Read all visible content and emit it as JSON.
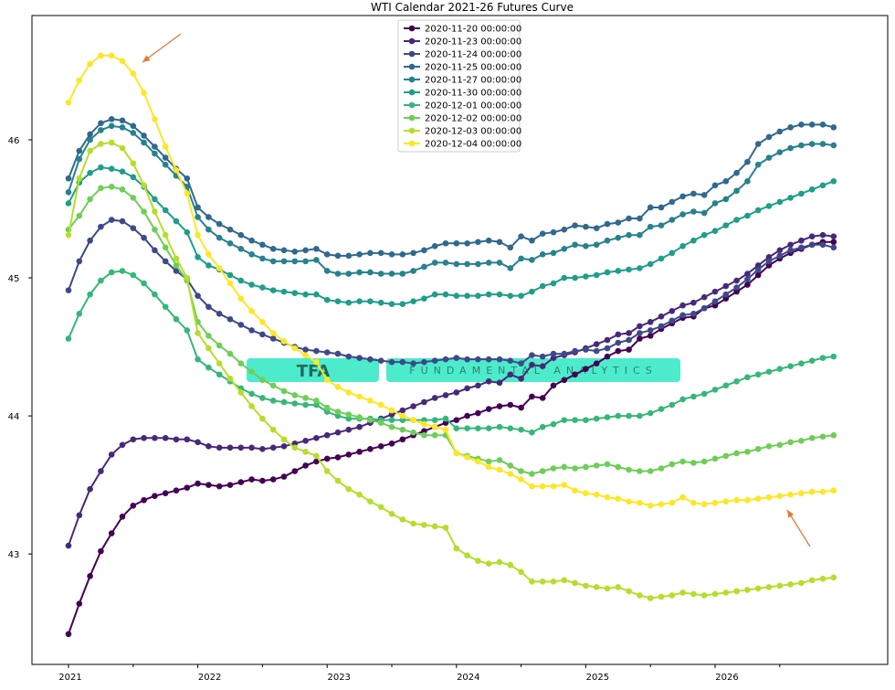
{
  "chart_data": {
    "type": "line",
    "title": "WTI Calendar 2021-26 Futures Curve",
    "xlabel": "",
    "ylabel": "",
    "x_start": "2021-01",
    "x_months": 72,
    "xticks": [
      "2021",
      "2022",
      "2023",
      "2024",
      "2025",
      "2026"
    ],
    "yticks": [
      "43",
      "44",
      "45",
      "46"
    ],
    "ylim": [
      42.2,
      46.9
    ],
    "grid": false,
    "legend_position": "top-center",
    "watermark": {
      "text": "TFA",
      "subtext": "FUNDAMENTAL ANALYTICS"
    },
    "annotations": [
      {
        "type": "arrow",
        "color": "#e07b39",
        "target": "2021-07 peak of 2020-12-04 curve"
      },
      {
        "type": "arrow",
        "color": "#e07b39",
        "target": "2026-04 of 2020-12-04 curve"
      }
    ],
    "series": [
      {
        "name": "2020-11-20 00:00:00",
        "color": "#440154",
        "values": [
          42.42,
          42.64,
          42.84,
          43.02,
          43.15,
          43.27,
          43.35,
          43.39,
          43.42,
          43.44,
          43.46,
          43.48,
          43.51,
          43.5,
          43.49,
          43.5,
          43.52,
          43.54,
          43.53,
          43.54,
          43.56,
          43.6,
          43.64,
          43.67,
          43.69,
          43.7,
          43.72,
          43.74,
          43.76,
          43.78,
          43.8,
          43.83,
          43.86,
          43.89,
          43.92,
          43.95,
          43.97,
          44.0,
          44.02,
          44.05,
          44.07,
          44.08,
          44.06,
          44.14,
          44.13,
          44.22,
          44.26,
          44.3,
          44.34,
          44.38,
          44.43,
          44.47,
          44.48,
          44.56,
          44.58,
          44.63,
          44.67,
          44.71,
          44.72,
          44.78,
          44.8,
          44.85,
          44.9,
          44.95,
          45.02,
          45.09,
          45.14,
          45.18,
          45.21,
          45.24,
          45.26,
          45.26
        ]
      },
      {
        "name": "2020-11-23 00:00:00",
        "color": "#482878",
        "values": [
          43.06,
          43.28,
          43.47,
          43.6,
          43.72,
          43.79,
          43.83,
          43.84,
          43.84,
          43.84,
          43.83,
          43.83,
          43.81,
          43.78,
          43.77,
          43.77,
          43.77,
          43.77,
          43.76,
          43.77,
          43.78,
          43.8,
          43.82,
          43.84,
          43.86,
          43.88,
          43.9,
          43.92,
          43.95,
          43.98,
          44.01,
          44.04,
          44.07,
          44.1,
          44.13,
          44.15,
          44.17,
          44.2,
          44.22,
          44.25,
          44.24,
          44.3,
          44.27,
          44.37,
          44.36,
          44.42,
          44.44,
          44.46,
          44.49,
          44.52,
          44.55,
          44.59,
          44.6,
          44.65,
          44.68,
          44.72,
          44.76,
          44.8,
          44.82,
          44.86,
          44.9,
          44.94,
          44.98,
          45.03,
          45.09,
          45.15,
          45.2,
          45.24,
          45.27,
          45.3,
          45.31,
          45.3
        ]
      },
      {
        "name": "2020-11-24 00:00:00",
        "color": "#3e4989",
        "values": [
          44.91,
          45.12,
          45.27,
          45.37,
          45.42,
          45.41,
          45.36,
          45.29,
          45.2,
          45.12,
          45.05,
          44.99,
          44.87,
          44.79,
          44.74,
          44.7,
          44.66,
          44.62,
          44.59,
          44.56,
          44.53,
          44.5,
          44.48,
          44.47,
          44.46,
          44.45,
          44.43,
          44.42,
          44.41,
          44.4,
          44.39,
          44.39,
          44.38,
          44.39,
          44.4,
          44.41,
          44.42,
          44.41,
          44.41,
          44.41,
          44.41,
          44.4,
          44.38,
          44.44,
          44.43,
          44.45,
          44.45,
          44.47,
          44.48,
          44.47,
          44.49,
          44.53,
          44.55,
          44.6,
          44.62,
          44.65,
          44.69,
          44.73,
          44.74,
          44.78,
          44.83,
          44.88,
          44.93,
          44.99,
          45.06,
          45.12,
          45.16,
          45.2,
          45.22,
          45.24,
          45.24,
          45.22
        ]
      },
      {
        "name": "2020-11-25 00:00:00",
        "color": "#31688e",
        "values": [
          45.72,
          45.92,
          46.04,
          46.12,
          46.15,
          46.14,
          46.1,
          46.03,
          45.95,
          45.87,
          45.79,
          45.72,
          45.51,
          45.44,
          45.39,
          45.35,
          45.31,
          45.27,
          45.24,
          45.21,
          45.2,
          45.19,
          45.2,
          45.21,
          45.17,
          45.16,
          45.16,
          45.17,
          45.18,
          45.18,
          45.17,
          45.17,
          45.18,
          45.2,
          45.23,
          45.25,
          45.25,
          45.25,
          45.26,
          45.27,
          45.26,
          45.22,
          45.3,
          45.27,
          45.32,
          45.33,
          45.35,
          45.38,
          45.37,
          45.36,
          45.39,
          45.4,
          45.43,
          45.43,
          45.51,
          45.51,
          45.55,
          45.59,
          45.61,
          45.6,
          45.67,
          45.7,
          45.76,
          45.84,
          45.97,
          46.02,
          46.06,
          46.09,
          46.11,
          46.11,
          46.11,
          46.09
        ]
      },
      {
        "name": "2020-11-27 00:00:00",
        "color": "#26828e",
        "values": [
          45.62,
          45.86,
          46.0,
          46.07,
          46.1,
          46.09,
          46.05,
          45.98,
          45.9,
          45.82,
          45.74,
          45.66,
          45.44,
          45.35,
          45.29,
          45.25,
          45.21,
          45.17,
          45.14,
          45.12,
          45.12,
          45.12,
          45.12,
          45.13,
          45.05,
          45.03,
          45.03,
          45.04,
          45.04,
          45.03,
          45.03,
          45.03,
          45.05,
          45.08,
          45.11,
          45.11,
          45.1,
          45.1,
          45.1,
          45.11,
          45.11,
          45.07,
          45.14,
          45.13,
          45.17,
          45.18,
          45.21,
          45.24,
          45.23,
          45.24,
          45.27,
          45.29,
          45.31,
          45.31,
          45.37,
          45.38,
          45.42,
          45.46,
          45.48,
          45.47,
          45.54,
          45.57,
          45.63,
          45.7,
          45.82,
          45.87,
          45.91,
          45.94,
          45.96,
          45.97,
          45.97,
          45.96
        ]
      },
      {
        "name": "2020-11-30 00:00:00",
        "color": "#1f9e89",
        "values": [
          45.54,
          45.69,
          45.76,
          45.8,
          45.79,
          45.77,
          45.73,
          45.66,
          45.57,
          45.49,
          45.41,
          45.33,
          45.15,
          45.09,
          45.06,
          45.02,
          44.98,
          44.95,
          44.93,
          44.91,
          44.9,
          44.89,
          44.88,
          44.88,
          44.84,
          44.83,
          44.82,
          44.83,
          44.83,
          44.82,
          44.81,
          44.81,
          44.83,
          44.85,
          44.88,
          44.88,
          44.87,
          44.87,
          44.87,
          44.88,
          44.88,
          44.87,
          44.87,
          44.9,
          44.94,
          44.96,
          45.0,
          45.0,
          45.01,
          45.02,
          45.04,
          45.05,
          45.06,
          45.07,
          45.1,
          45.14,
          45.18,
          45.23,
          45.27,
          45.31,
          45.34,
          45.38,
          45.42,
          45.45,
          45.49,
          45.52,
          45.55,
          45.58,
          45.61,
          45.64,
          45.67,
          45.7
        ]
      },
      {
        "name": "2020-12-01 00:00:00",
        "color": "#35b779",
        "values": [
          44.56,
          44.74,
          44.88,
          44.98,
          45.04,
          45.05,
          45.02,
          44.96,
          44.88,
          44.79,
          44.7,
          44.62,
          44.41,
          44.35,
          44.3,
          44.25,
          44.2,
          44.16,
          44.13,
          44.11,
          44.1,
          44.09,
          44.08,
          44.08,
          44.03,
          44.0,
          43.98,
          43.98,
          43.98,
          43.97,
          43.97,
          43.97,
          43.97,
          43.97,
          43.97,
          43.98,
          43.91,
          43.91,
          43.91,
          43.91,
          43.92,
          43.91,
          43.9,
          43.88,
          43.92,
          43.94,
          43.97,
          43.97,
          43.97,
          43.98,
          43.99,
          44.0,
          44.0,
          44.0,
          44.02,
          44.05,
          44.08,
          44.12,
          44.14,
          44.16,
          44.19,
          44.22,
          44.25,
          44.28,
          44.3,
          44.32,
          44.34,
          44.36,
          44.38,
          44.4,
          44.42,
          44.43
        ]
      },
      {
        "name": "2020-12-02 00:00:00",
        "color": "#6ece58",
        "values": [
          45.35,
          45.45,
          45.57,
          45.65,
          45.66,
          45.64,
          45.58,
          45.48,
          45.35,
          45.22,
          45.09,
          44.98,
          44.68,
          44.58,
          44.51,
          44.45,
          44.38,
          44.32,
          44.26,
          44.22,
          44.18,
          44.15,
          44.13,
          44.11,
          44.06,
          44.03,
          44.01,
          43.99,
          43.97,
          43.95,
          43.92,
          43.9,
          43.88,
          43.86,
          43.86,
          43.86,
          43.73,
          43.71,
          43.69,
          43.67,
          43.68,
          43.64,
          43.6,
          43.58,
          43.6,
          43.62,
          43.63,
          43.62,
          43.63,
          43.64,
          43.65,
          43.63,
          43.61,
          43.6,
          43.6,
          43.62,
          43.65,
          43.67,
          43.66,
          43.67,
          43.69,
          43.71,
          43.73,
          43.74,
          43.76,
          43.78,
          43.79,
          43.81,
          43.82,
          43.84,
          43.85,
          43.86
        ]
      },
      {
        "name": "2020-12-03 00:00:00",
        "color": "#b5de2b",
        "values": [
          45.31,
          45.72,
          45.92,
          45.97,
          45.98,
          45.94,
          45.83,
          45.67,
          45.48,
          45.31,
          45.14,
          45.0,
          44.6,
          44.49,
          44.38,
          44.27,
          44.17,
          44.07,
          43.98,
          43.9,
          43.83,
          43.77,
          43.74,
          43.71,
          43.6,
          43.53,
          43.47,
          43.43,
          43.38,
          43.34,
          43.29,
          43.25,
          43.22,
          43.21,
          43.2,
          43.19,
          43.04,
          42.99,
          42.95,
          42.93,
          42.94,
          42.92,
          42.87,
          42.8,
          42.8,
          42.8,
          42.81,
          42.79,
          42.77,
          42.76,
          42.75,
          42.76,
          42.73,
          42.7,
          42.68,
          42.69,
          42.7,
          42.72,
          42.71,
          42.7,
          42.71,
          42.72,
          42.73,
          42.74,
          42.75,
          42.76,
          42.77,
          42.78,
          42.79,
          42.81,
          42.82,
          42.83
        ]
      },
      {
        "name": "2020-12-04 00:00:00",
        "color": "#fde725",
        "values": [
          46.27,
          46.43,
          46.55,
          46.61,
          46.61,
          46.57,
          46.48,
          46.34,
          46.15,
          45.95,
          45.78,
          45.61,
          45.31,
          45.17,
          45.07,
          44.96,
          44.85,
          44.76,
          44.68,
          44.6,
          44.54,
          44.49,
          44.44,
          44.39,
          44.26,
          44.21,
          44.17,
          44.14,
          44.11,
          44.08,
          44.04,
          44.0,
          43.97,
          43.94,
          43.92,
          43.9,
          43.73,
          43.7,
          43.67,
          43.63,
          43.61,
          43.58,
          43.54,
          43.49,
          43.49,
          43.49,
          43.5,
          43.46,
          43.44,
          43.43,
          43.41,
          43.4,
          43.38,
          43.37,
          43.35,
          43.36,
          43.37,
          43.41,
          43.37,
          43.36,
          43.37,
          43.38,
          43.39,
          43.39,
          43.4,
          43.41,
          43.42,
          43.43,
          43.44,
          43.45,
          43.45,
          43.46
        ]
      }
    ]
  }
}
